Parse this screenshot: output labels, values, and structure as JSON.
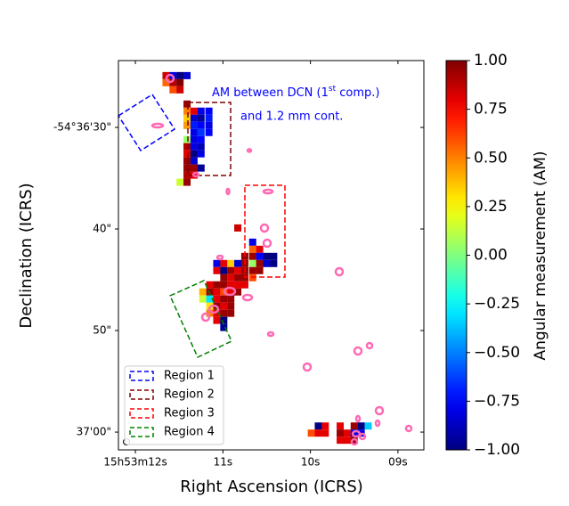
{
  "chart_data": {
    "type": "heatmap",
    "x_label": "Right Ascension (ICRS)",
    "y_label": "Declination (ICRS)",
    "colorbar_label": "Angular measurement (AM)",
    "colormap": "jet",
    "annotation": [
      "AM between DCN (1",
      "st",
      " comp.)"
    ],
    "annotation_line2": "and 1.2 mm cont.",
    "xlim": [
      12.194,
      8.704
    ],
    "ylim": [
      61.75,
      23.42
    ],
    "zlim": [
      -1,
      1
    ],
    "xticks": [
      {
        "value": 12,
        "label": "15h53m12s"
      },
      {
        "value": 11,
        "label": "11s"
      },
      {
        "value": 10,
        "label": "10s"
      },
      {
        "value": 9,
        "label": "09s"
      }
    ],
    "yticks": [
      {
        "value": 30,
        "label": "-54°36'30\""
      },
      {
        "value": 40,
        "label": "40\""
      },
      {
        "value": 50,
        "label": "50\""
      },
      {
        "value": 60,
        "label": "37'00\""
      }
    ],
    "zticks": [
      {
        "value": -1,
        "label": "−1.00"
      },
      {
        "value": -0.75,
        "label": "−0.75"
      },
      {
        "value": -0.5,
        "label": "−0.50"
      },
      {
        "value": -0.25,
        "label": "−0.25"
      },
      {
        "value": 0,
        "label": "0.00"
      },
      {
        "value": 0.25,
        "label": "0.25"
      },
      {
        "value": 0.5,
        "label": "0.50"
      },
      {
        "value": 0.75,
        "label": "0.75"
      },
      {
        "value": 1,
        "label": "1.00"
      }
    ],
    "regions": [
      {
        "name": "Region 1",
        "color": "#0000ff"
      },
      {
        "name": "Region 2",
        "color": "#800000"
      },
      {
        "name": "Region 3",
        "color": "#ff0000"
      },
      {
        "name": "Region 4",
        "color": "#008000"
      }
    ],
    "legend": "lower left",
    "pixels": [
      [
        11.65,
        24.9,
        0.85
      ],
      [
        11.57,
        24.9,
        -0.8
      ],
      [
        11.49,
        24.9,
        -1
      ],
      [
        11.41,
        24.9,
        -0.85
      ],
      [
        11.65,
        25.6,
        0.55
      ],
      [
        11.57,
        25.6,
        0.9
      ],
      [
        11.49,
        25.6,
        1
      ],
      [
        11.57,
        26.3,
        0.6
      ],
      [
        11.49,
        26.3,
        0.85
      ],
      [
        11.41,
        27.7,
        0.95
      ],
      [
        11.41,
        28.4,
        0.5
      ],
      [
        11.33,
        28.4,
        0.8
      ],
      [
        11.25,
        28.4,
        -0.8
      ],
      [
        11.16,
        28.4,
        -0.75
      ],
      [
        11.41,
        29.1,
        0.35
      ],
      [
        11.33,
        29.1,
        -0.85
      ],
      [
        11.25,
        29.1,
        -0.95
      ],
      [
        11.16,
        29.1,
        -0.7
      ],
      [
        11.41,
        29.8,
        0.45
      ],
      [
        11.33,
        29.8,
        -0.7
      ],
      [
        11.25,
        29.8,
        -0.75
      ],
      [
        11.16,
        29.8,
        -0.8
      ],
      [
        11.33,
        30.5,
        -0.8
      ],
      [
        11.25,
        30.5,
        -0.65
      ],
      [
        11.16,
        30.5,
        -0.75
      ],
      [
        11.41,
        31.2,
        0.05
      ],
      [
        11.33,
        31.2,
        -0.8
      ],
      [
        11.25,
        31.2,
        -0.75
      ],
      [
        11.41,
        31.9,
        0.9
      ],
      [
        11.33,
        31.9,
        -0.8
      ],
      [
        11.25,
        31.9,
        -0.9
      ],
      [
        11.41,
        32.6,
        0.8
      ],
      [
        11.33,
        32.6,
        -1
      ],
      [
        11.25,
        32.6,
        -0.8
      ],
      [
        11.41,
        33.3,
        0.95
      ],
      [
        11.33,
        33.3,
        -0.85
      ],
      [
        11.41,
        34.0,
        0.95
      ],
      [
        11.33,
        34.0,
        0.95
      ],
      [
        11.25,
        34.0,
        -0.95
      ],
      [
        11.41,
        34.7,
        0.9
      ],
      [
        11.33,
        34.7,
        0.8
      ],
      [
        11.49,
        35.4,
        0.15
      ],
      [
        11.41,
        35.4,
        0.95
      ],
      [
        10.83,
        39.9,
        0.85
      ],
      [
        10.66,
        41.3,
        -0.8
      ],
      [
        10.66,
        42.0,
        0.55
      ],
      [
        10.58,
        42.0,
        0.8
      ],
      [
        10.75,
        42.7,
        0.95
      ],
      [
        10.66,
        42.7,
        0.95
      ],
      [
        10.58,
        42.7,
        -0.75
      ],
      [
        10.5,
        42.7,
        -1
      ],
      [
        10.42,
        42.7,
        -1
      ],
      [
        11.07,
        43.4,
        -0.8
      ],
      [
        10.99,
        43.4,
        0.8
      ],
      [
        10.91,
        43.4,
        0.35
      ],
      [
        10.83,
        43.4,
        -0.85
      ],
      [
        10.75,
        43.4,
        0.95
      ],
      [
        10.66,
        43.4,
        0.05
      ],
      [
        10.58,
        43.4,
        0.95
      ],
      [
        10.5,
        43.4,
        -0.85
      ],
      [
        10.42,
        43.4,
        -1
      ],
      [
        11.07,
        44.1,
        0.8
      ],
      [
        10.99,
        44.1,
        -1
      ],
      [
        10.91,
        44.1,
        0.95
      ],
      [
        10.83,
        44.1,
        0.8
      ],
      [
        10.75,
        44.1,
        0.95
      ],
      [
        10.66,
        44.1,
        0.95
      ],
      [
        10.58,
        44.1,
        0.95
      ],
      [
        10.99,
        44.8,
        0.95
      ],
      [
        10.91,
        44.8,
        0.8
      ],
      [
        10.83,
        44.8,
        0.95
      ],
      [
        10.75,
        44.8,
        0.95
      ],
      [
        10.66,
        44.8,
        0.6
      ],
      [
        11.15,
        45.5,
        0.8
      ],
      [
        11.07,
        45.5,
        0.95
      ],
      [
        10.99,
        45.5,
        0.95
      ],
      [
        10.91,
        45.5,
        0.8
      ],
      [
        10.83,
        45.5,
        0.8
      ],
      [
        10.75,
        45.5,
        0.8
      ],
      [
        11.23,
        46.2,
        0.4
      ],
      [
        11.15,
        46.2,
        0.95
      ],
      [
        11.07,
        46.2,
        0.8
      ],
      [
        10.99,
        46.2,
        0.6
      ],
      [
        10.91,
        46.2,
        0.8
      ],
      [
        10.83,
        46.2,
        0.95
      ],
      [
        11.23,
        46.9,
        0.15
      ],
      [
        11.15,
        46.9,
        -0.3
      ],
      [
        11.07,
        46.9,
        0.8
      ],
      [
        10.99,
        46.9,
        0.95
      ],
      [
        10.91,
        46.9,
        0.95
      ],
      [
        11.15,
        47.6,
        0.3
      ],
      [
        11.07,
        47.6,
        0.95
      ],
      [
        10.99,
        47.6,
        0.8
      ],
      [
        10.91,
        47.6,
        0.95
      ],
      [
        11.15,
        48.3,
        0.5
      ],
      [
        11.07,
        48.3,
        0.8
      ],
      [
        10.99,
        48.3,
        0.95
      ],
      [
        10.91,
        48.3,
        0.95
      ],
      [
        11.07,
        49.0,
        0.8
      ],
      [
        10.99,
        49.0,
        -1
      ],
      [
        10.99,
        49.7,
        -0.95
      ],
      [
        9.91,
        59.4,
        -1
      ],
      [
        9.83,
        59.4,
        0.8
      ],
      [
        9.66,
        59.4,
        0.8
      ],
      [
        9.5,
        59.4,
        0.95
      ],
      [
        9.42,
        59.4,
        -1
      ],
      [
        9.34,
        59.4,
        -0.35
      ],
      [
        9.99,
        60.1,
        0.6
      ],
      [
        9.91,
        60.1,
        0.8
      ],
      [
        9.83,
        60.1,
        0.8
      ],
      [
        9.66,
        60.1,
        0.95
      ],
      [
        9.58,
        60.1,
        0.8
      ],
      [
        9.5,
        60.1,
        -0.8
      ],
      [
        9.42,
        60.1,
        -0.8
      ],
      [
        9.66,
        60.8,
        0.8
      ],
      [
        9.58,
        60.8,
        0.8
      ],
      [
        9.5,
        60.8,
        0.95
      ]
    ]
  }
}
